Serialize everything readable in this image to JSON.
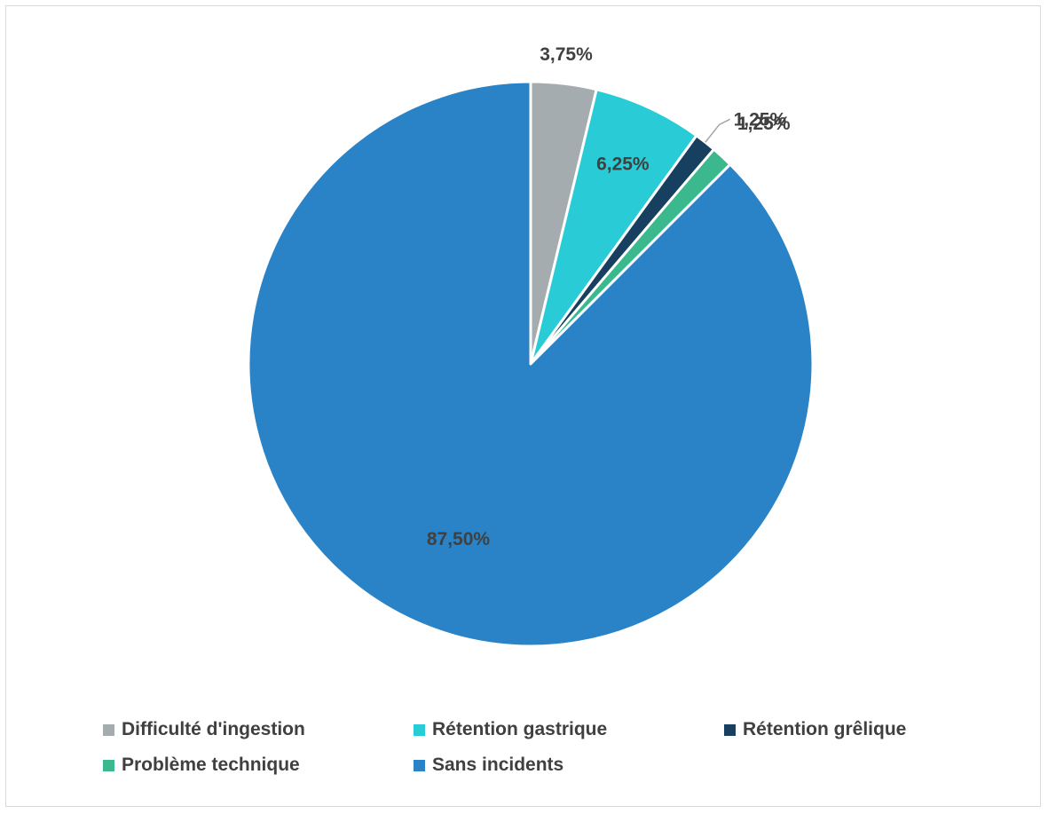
{
  "chart_data": {
    "type": "pie",
    "title": "",
    "slices": [
      {
        "name": "Difficulté d'ingestion",
        "value": 3.75,
        "label": "3,75%",
        "color": "#a5acaf"
      },
      {
        "name": "Rétention gastrique",
        "value": 6.25,
        "label": "6,25%",
        "color": "#29ccd6"
      },
      {
        "name": "Rétention grêlique",
        "value": 1.25,
        "label": "1,25%",
        "color": "#173f5f"
      },
      {
        "name": "Problème technique",
        "value": 1.25,
        "label": "1,25%",
        "color": "#3cb88f"
      },
      {
        "name": "Sans incidents",
        "value": 87.5,
        "label": "87,50%",
        "color": "#2983c6"
      }
    ],
    "legend_position": "bottom",
    "start_angle": "top",
    "direction": "clockwise"
  },
  "legend": {
    "rows": [
      [
        {
          "label": "Difficulté d'ingestion",
          "color": "#a5acaf"
        },
        {
          "label": "Rétention gastrique",
          "color": "#29ccd6"
        },
        {
          "label": "Rétention grêlique",
          "color": "#173f5f"
        }
      ],
      [
        {
          "label": "Problème technique",
          "color": "#3cb88f"
        },
        {
          "label": "Sans incidents",
          "color": "#2983c6"
        }
      ]
    ]
  }
}
